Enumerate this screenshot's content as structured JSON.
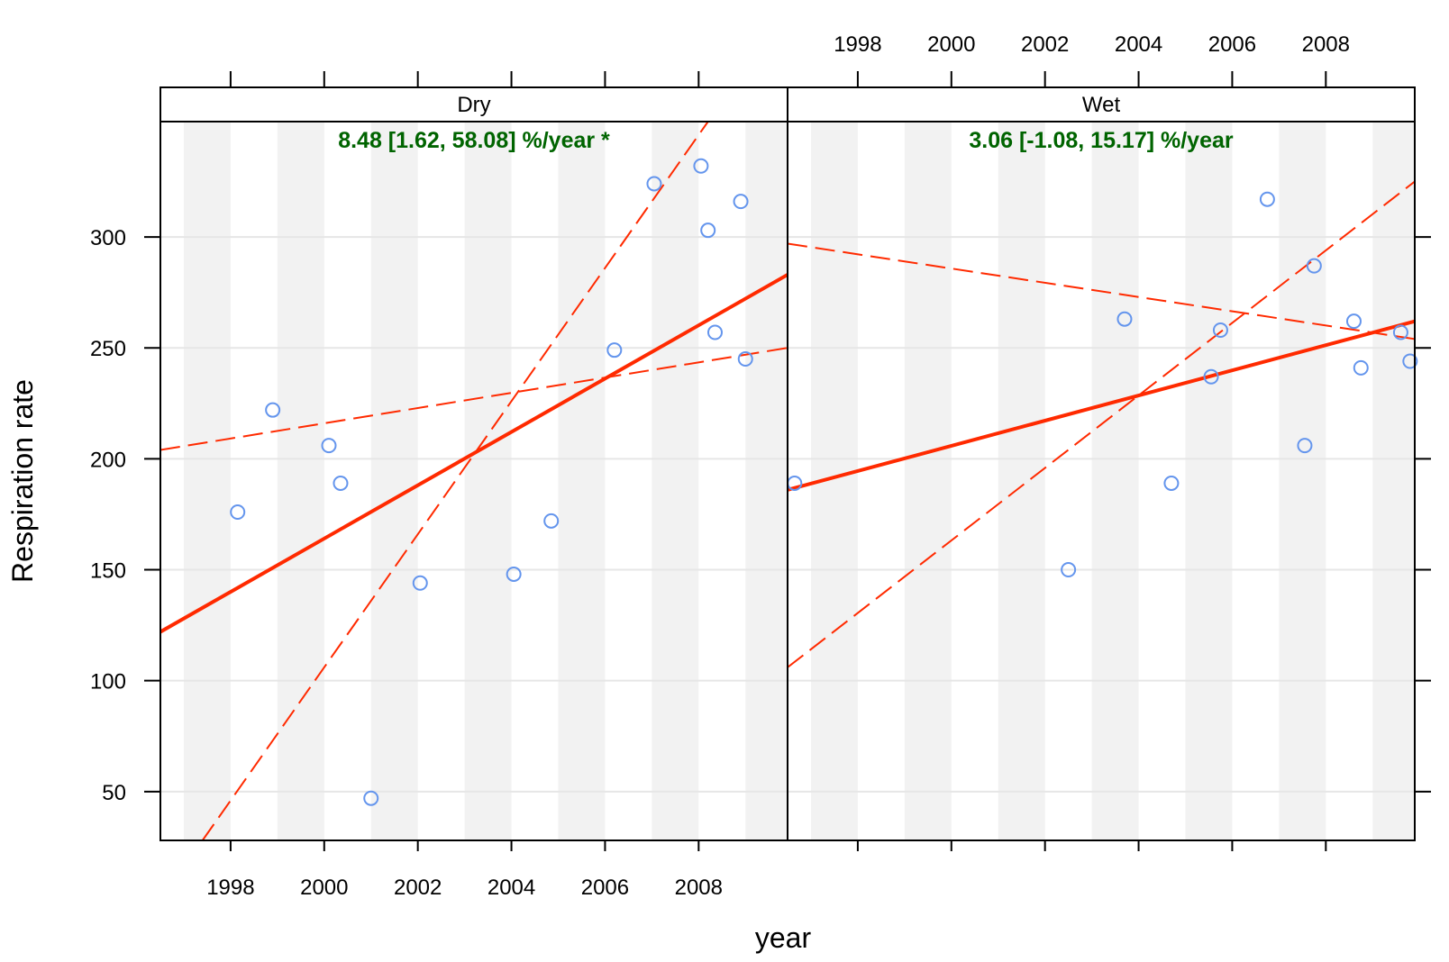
{
  "chart_data": {
    "type": "scatter",
    "xlabel": "year",
    "ylabel": "Respiration rate",
    "xlim": [
      1996.5,
      2009.9
    ],
    "ylim": [
      28,
      352
    ],
    "x_ticks": [
      1998,
      2000,
      2002,
      2004,
      2006,
      2008
    ],
    "y_ticks": [
      50,
      100,
      150,
      200,
      250,
      300
    ],
    "point_color": "#6495ED",
    "line_color": "#FF2A00",
    "annotation_color": "#006400",
    "band_color": "#F2F2F2",
    "grid_color": "#E6E6E6",
    "panels": [
      {
        "name": "Dry",
        "annotation": "8.48 [1.62, 58.08] %/year *",
        "points": [
          {
            "x": 1998.15,
            "y": 176
          },
          {
            "x": 1998.9,
            "y": 222
          },
          {
            "x": 2000.1,
            "y": 206
          },
          {
            "x": 2000.35,
            "y": 189
          },
          {
            "x": 2001.0,
            "y": 47
          },
          {
            "x": 2002.05,
            "y": 144
          },
          {
            "x": 2004.05,
            "y": 148
          },
          {
            "x": 2004.85,
            "y": 172
          },
          {
            "x": 2006.2,
            "y": 249
          },
          {
            "x": 2007.05,
            "y": 324
          },
          {
            "x": 2008.05,
            "y": 332
          },
          {
            "x": 2008.2,
            "y": 303
          },
          {
            "x": 2008.35,
            "y": 257
          },
          {
            "x": 2008.9,
            "y": 316
          },
          {
            "x": 2009.0,
            "y": 245
          }
        ],
        "trend": {
          "x": [
            1996.5,
            2009.9
          ],
          "y": [
            122,
            283
          ]
        },
        "ci_lines": [
          {
            "x": [
              1996.5,
              2009.9
            ],
            "y": [
              204,
              250
            ]
          },
          {
            "x": [
              1997.4,
              2008.2
            ],
            "y": [
              28,
              352
            ]
          }
        ]
      },
      {
        "name": "Wet",
        "annotation": "3.06 [-1.08, 15.17] %/year",
        "points": [
          {
            "x": 1996.65,
            "y": 189
          },
          {
            "x": 2002.5,
            "y": 150
          },
          {
            "x": 2003.7,
            "y": 263
          },
          {
            "x": 2004.7,
            "y": 189
          },
          {
            "x": 2005.55,
            "y": 237
          },
          {
            "x": 2005.75,
            "y": 258
          },
          {
            "x": 2006.75,
            "y": 317
          },
          {
            "x": 2007.55,
            "y": 206
          },
          {
            "x": 2007.75,
            "y": 287
          },
          {
            "x": 2008.6,
            "y": 262
          },
          {
            "x": 2008.75,
            "y": 241
          },
          {
            "x": 2009.6,
            "y": 257
          },
          {
            "x": 2009.8,
            "y": 244
          }
        ],
        "trend": {
          "x": [
            1996.5,
            2009.9
          ],
          "y": [
            186,
            262
          ]
        },
        "ci_lines": [
          {
            "x": [
              1996.5,
              2009.9
            ],
            "y": [
              297,
              254
            ]
          },
          {
            "x": [
              1996.5,
              2009.9
            ],
            "y": [
              106,
              325
            ]
          }
        ]
      }
    ]
  }
}
